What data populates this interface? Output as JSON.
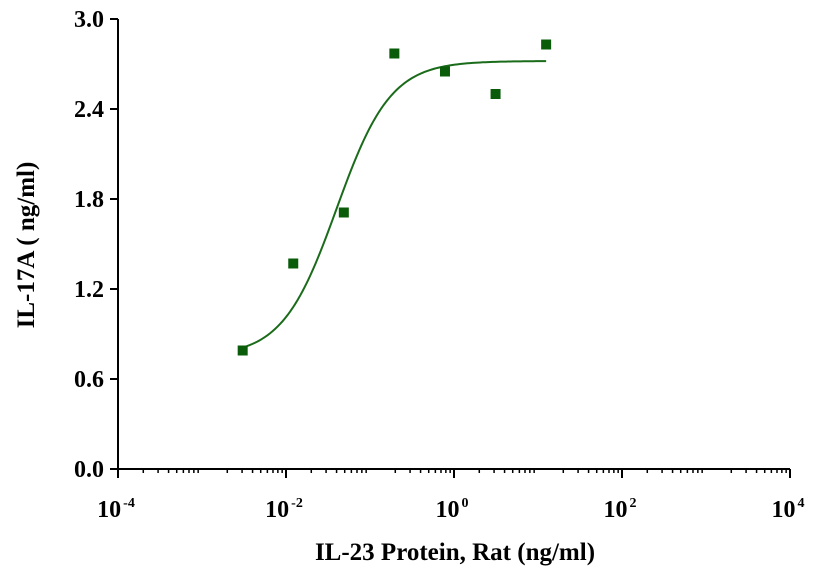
{
  "chart_data": {
    "type": "scatter",
    "xlabel": "IL-23 Protein, Rat  (ng/ml)",
    "ylabel": "IL-17A ( ng/ml)",
    "xscale": "log",
    "xlim": [
      0.0001,
      10000
    ],
    "ylim": [
      0,
      3.0
    ],
    "grid": false,
    "y_ticks": [
      "0.0",
      "0.6",
      "1.2",
      "1.8",
      "2.4",
      "3.0"
    ],
    "x_ticks": [
      {
        "base": "10",
        "exp": "-4"
      },
      {
        "base": "10",
        "exp": "-2"
      },
      {
        "base": "10",
        "exp": "0"
      },
      {
        "base": "10",
        "exp": "2"
      },
      {
        "base": "10",
        "exp": "4"
      }
    ],
    "series": [
      {
        "x": [
          0.00305,
          0.0122,
          0.0488,
          0.195,
          0.781,
          3.125,
          12.5
        ],
        "y": [
          0.79,
          1.37,
          1.71,
          2.77,
          2.65,
          2.5,
          2.83
        ]
      }
    ],
    "fit": {
      "bottom": 0.75,
      "top": 2.72,
      "ec50": 0.04,
      "hill": 1.35,
      "x_range": [
        0.003,
        12.5
      ]
    },
    "colors": {
      "series": "#0a5c0a",
      "curve": "#1a6b1a",
      "axis": "#000000"
    }
  }
}
